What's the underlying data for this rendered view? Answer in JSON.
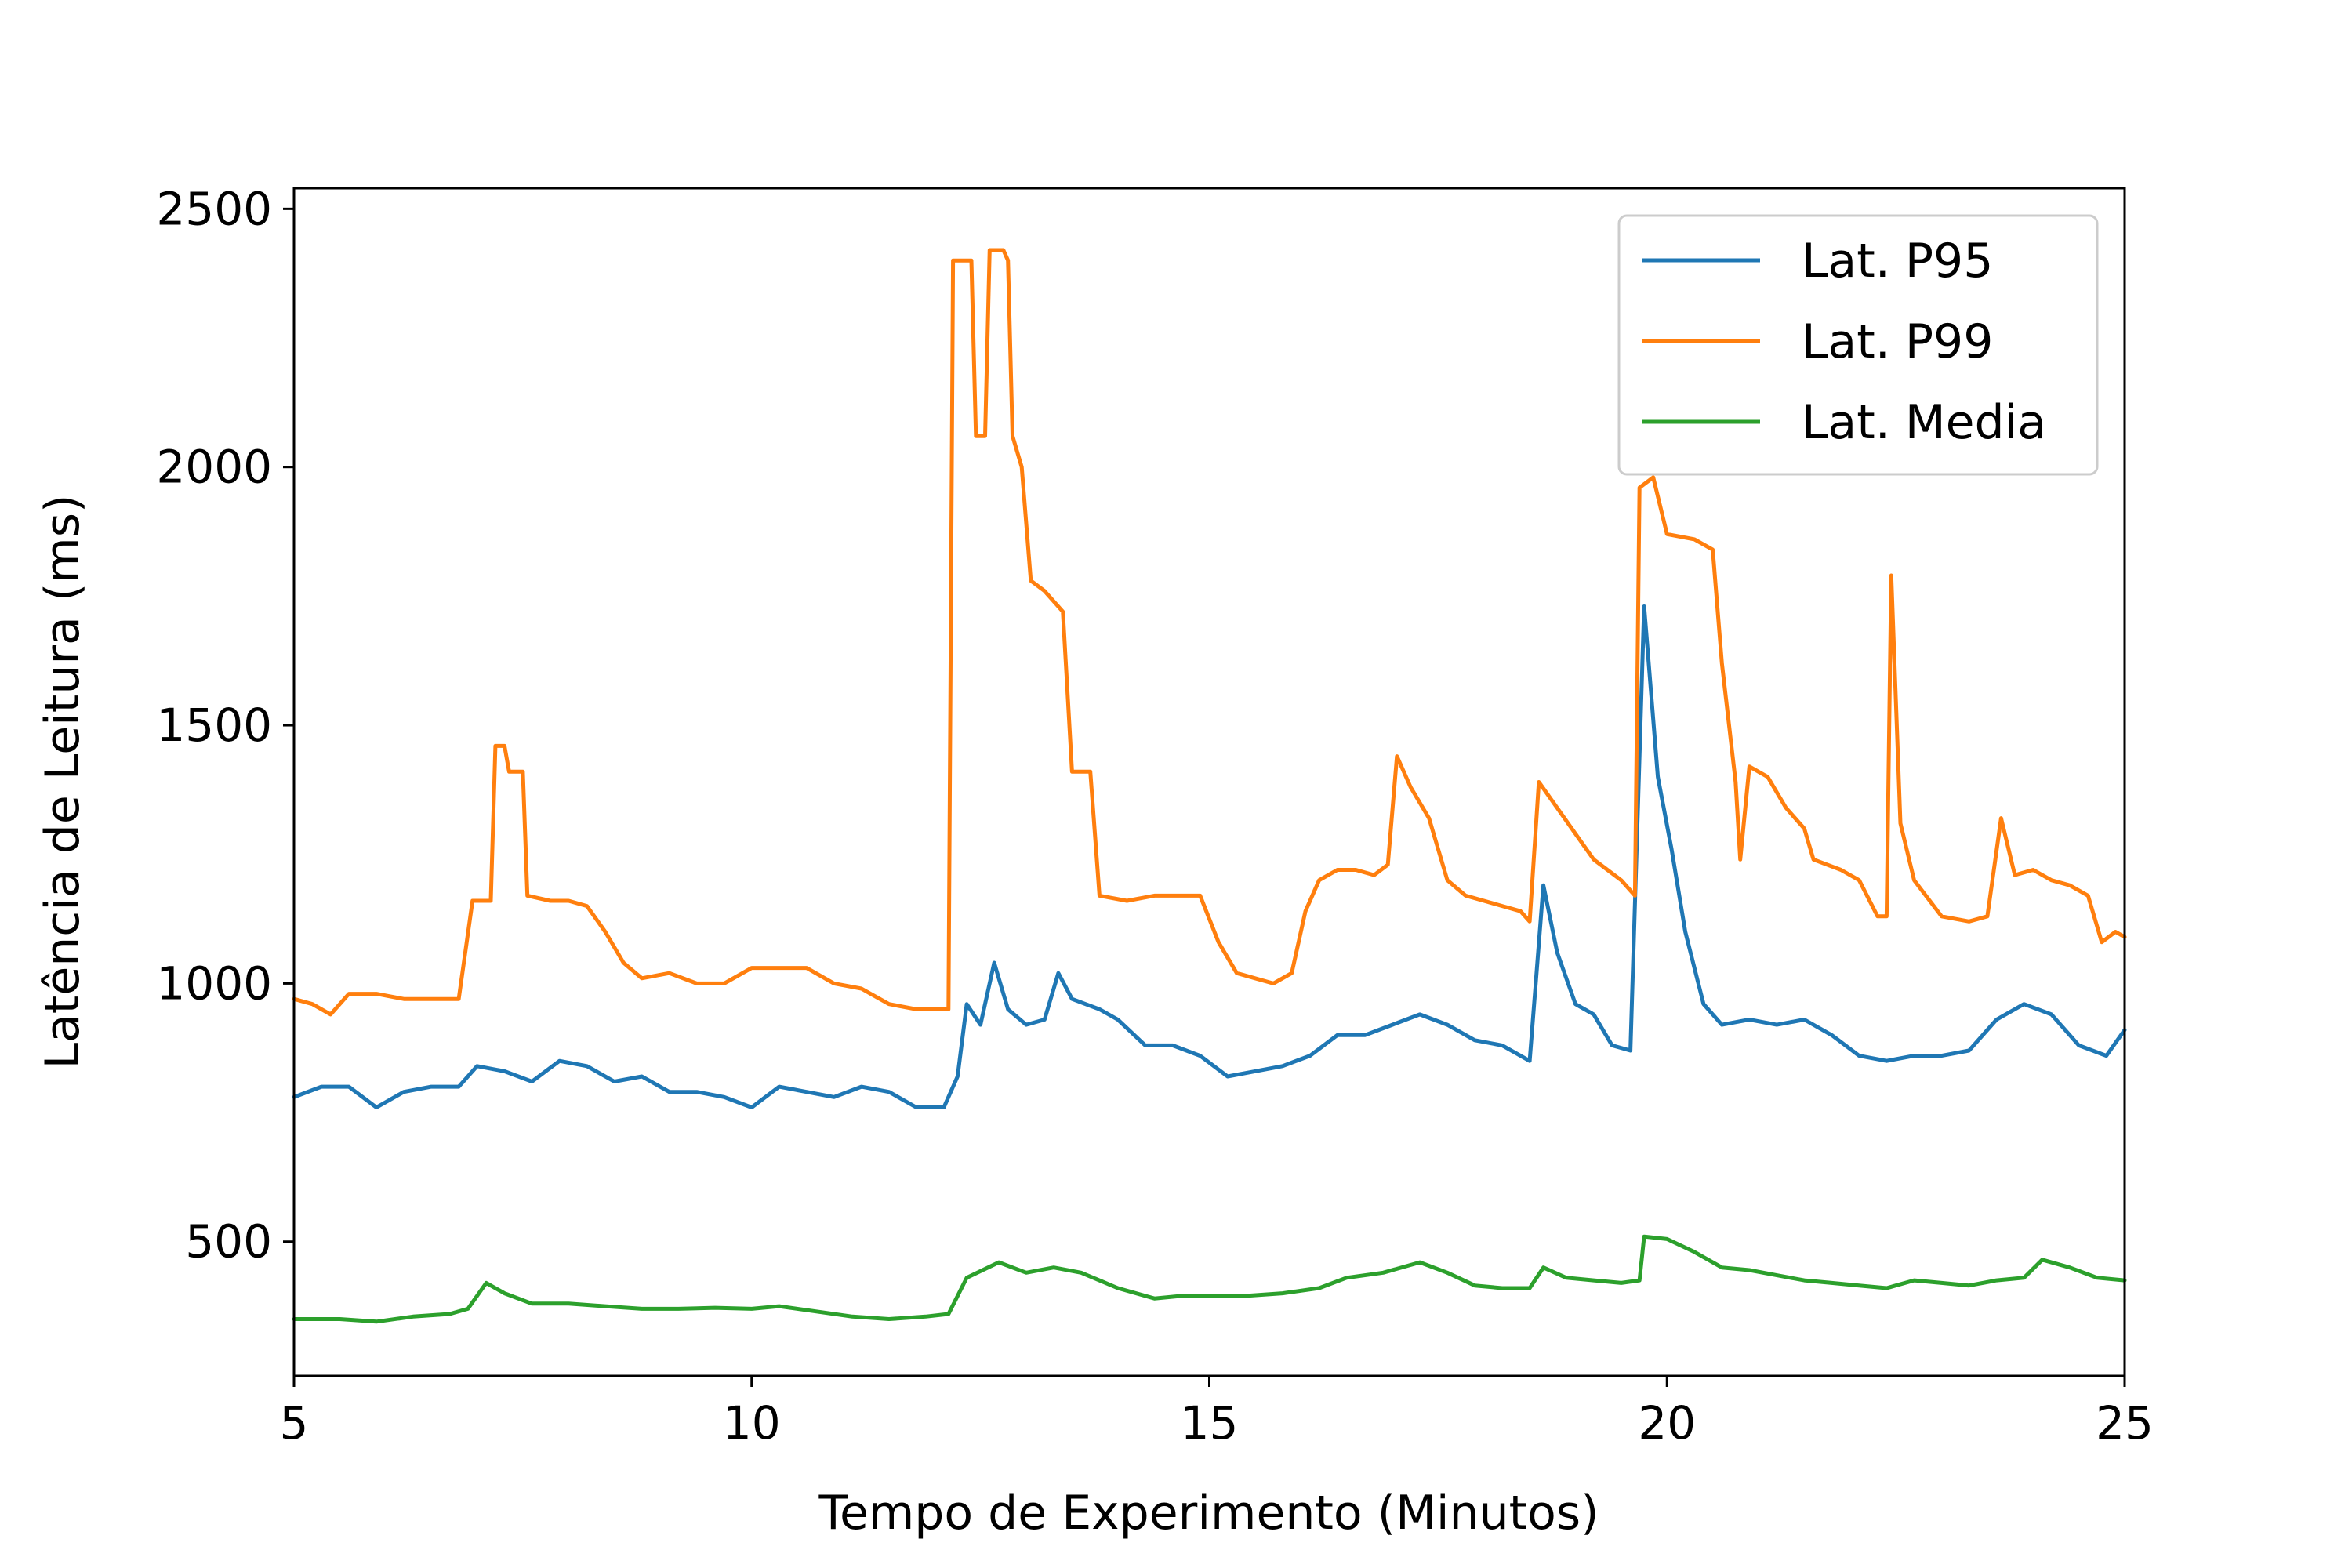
{
  "chart_data": {
    "type": "line",
    "title": "",
    "xlabel": "Tempo de Experimento (Minutos)",
    "ylabel": "Latência de Leitura (ms)",
    "xlim": [
      5,
      25
    ],
    "ylim": [
      240,
      2540
    ],
    "xticks": [
      5,
      10,
      15,
      20,
      25
    ],
    "yticks": [
      500,
      1000,
      1500,
      2000,
      2500
    ],
    "grid": false,
    "legend_position": "top-right",
    "series": [
      {
        "name": "Lat. P95",
        "color": "#1f77b4",
        "points": [
          [
            5.0,
            780
          ],
          [
            5.3,
            800
          ],
          [
            5.6,
            800
          ],
          [
            5.9,
            760
          ],
          [
            6.2,
            790
          ],
          [
            6.5,
            800
          ],
          [
            6.8,
            800
          ],
          [
            7.0,
            840
          ],
          [
            7.3,
            830
          ],
          [
            7.6,
            810
          ],
          [
            7.9,
            850
          ],
          [
            8.2,
            840
          ],
          [
            8.5,
            810
          ],
          [
            8.8,
            820
          ],
          [
            9.1,
            790
          ],
          [
            9.4,
            790
          ],
          [
            9.7,
            780
          ],
          [
            10.0,
            760
          ],
          [
            10.3,
            800
          ],
          [
            10.6,
            790
          ],
          [
            10.9,
            780
          ],
          [
            11.2,
            800
          ],
          [
            11.5,
            790
          ],
          [
            11.8,
            760
          ],
          [
            12.1,
            760
          ],
          [
            12.25,
            820
          ],
          [
            12.35,
            960
          ],
          [
            12.5,
            920
          ],
          [
            12.65,
            1040
          ],
          [
            12.8,
            950
          ],
          [
            13.0,
            920
          ],
          [
            13.2,
            930
          ],
          [
            13.35,
            1020
          ],
          [
            13.5,
            970
          ],
          [
            13.8,
            950
          ],
          [
            14.0,
            930
          ],
          [
            14.3,
            880
          ],
          [
            14.6,
            880
          ],
          [
            14.9,
            860
          ],
          [
            15.2,
            820
          ],
          [
            15.5,
            830
          ],
          [
            15.8,
            840
          ],
          [
            16.1,
            860
          ],
          [
            16.4,
            900
          ],
          [
            16.7,
            900
          ],
          [
            17.0,
            920
          ],
          [
            17.3,
            940
          ],
          [
            17.6,
            920
          ],
          [
            17.9,
            890
          ],
          [
            18.2,
            880
          ],
          [
            18.5,
            850
          ],
          [
            18.65,
            1190
          ],
          [
            18.8,
            1060
          ],
          [
            19.0,
            960
          ],
          [
            19.2,
            940
          ],
          [
            19.4,
            880
          ],
          [
            19.6,
            870
          ],
          [
            19.75,
            1730
          ],
          [
            19.9,
            1400
          ],
          [
            20.05,
            1260
          ],
          [
            20.2,
            1100
          ],
          [
            20.4,
            960
          ],
          [
            20.6,
            920
          ],
          [
            20.9,
            930
          ],
          [
            21.2,
            920
          ],
          [
            21.5,
            930
          ],
          [
            21.8,
            900
          ],
          [
            22.1,
            860
          ],
          [
            22.4,
            850
          ],
          [
            22.7,
            860
          ],
          [
            23.0,
            860
          ],
          [
            23.3,
            870
          ],
          [
            23.6,
            930
          ],
          [
            23.9,
            960
          ],
          [
            24.2,
            940
          ],
          [
            24.5,
            880
          ],
          [
            24.8,
            860
          ],
          [
            25.0,
            910
          ]
        ]
      },
      {
        "name": "Lat. P99",
        "color": "#ff7f0e",
        "points": [
          [
            5.0,
            970
          ],
          [
            5.2,
            960
          ],
          [
            5.4,
            940
          ],
          [
            5.6,
            980
          ],
          [
            5.9,
            980
          ],
          [
            6.2,
            970
          ],
          [
            6.5,
            970
          ],
          [
            6.8,
            970
          ],
          [
            6.95,
            1160
          ],
          [
            7.15,
            1160
          ],
          [
            7.2,
            1460
          ],
          [
            7.3,
            1460
          ],
          [
            7.35,
            1410
          ],
          [
            7.5,
            1410
          ],
          [
            7.55,
            1170
          ],
          [
            7.8,
            1160
          ],
          [
            8.0,
            1160
          ],
          [
            8.2,
            1150
          ],
          [
            8.4,
            1100
          ],
          [
            8.6,
            1040
          ],
          [
            8.8,
            1010
          ],
          [
            9.1,
            1020
          ],
          [
            9.4,
            1000
          ],
          [
            9.7,
            1000
          ],
          [
            10.0,
            1030
          ],
          [
            10.3,
            1030
          ],
          [
            10.6,
            1030
          ],
          [
            10.9,
            1000
          ],
          [
            11.2,
            990
          ],
          [
            11.5,
            960
          ],
          [
            11.8,
            950
          ],
          [
            12.0,
            950
          ],
          [
            12.15,
            950
          ],
          [
            12.2,
            2400
          ],
          [
            12.4,
            2400
          ],
          [
            12.45,
            2060
          ],
          [
            12.55,
            2060
          ],
          [
            12.6,
            2420
          ],
          [
            12.75,
            2420
          ],
          [
            12.8,
            2400
          ],
          [
            12.85,
            2060
          ],
          [
            12.95,
            2000
          ],
          [
            13.05,
            1780
          ],
          [
            13.2,
            1760
          ],
          [
            13.4,
            1720
          ],
          [
            13.5,
            1410
          ],
          [
            13.7,
            1410
          ],
          [
            13.8,
            1170
          ],
          [
            14.1,
            1160
          ],
          [
            14.4,
            1170
          ],
          [
            14.7,
            1170
          ],
          [
            14.9,
            1170
          ],
          [
            15.1,
            1080
          ],
          [
            15.3,
            1020
          ],
          [
            15.5,
            1010
          ],
          [
            15.7,
            1000
          ],
          [
            15.9,
            1020
          ],
          [
            16.05,
            1140
          ],
          [
            16.2,
            1200
          ],
          [
            16.4,
            1220
          ],
          [
            16.6,
            1220
          ],
          [
            16.8,
            1210
          ],
          [
            16.95,
            1230
          ],
          [
            17.05,
            1440
          ],
          [
            17.2,
            1380
          ],
          [
            17.4,
            1320
          ],
          [
            17.6,
            1200
          ],
          [
            17.8,
            1170
          ],
          [
            18.0,
            1160
          ],
          [
            18.2,
            1150
          ],
          [
            18.4,
            1140
          ],
          [
            18.5,
            1120
          ],
          [
            18.6,
            1390
          ],
          [
            18.8,
            1340
          ],
          [
            19.0,
            1290
          ],
          [
            19.2,
            1240
          ],
          [
            19.5,
            1200
          ],
          [
            19.65,
            1170
          ],
          [
            19.7,
            1960
          ],
          [
            19.85,
            1980
          ],
          [
            20.0,
            1870
          ],
          [
            20.3,
            1860
          ],
          [
            20.5,
            1840
          ],
          [
            20.6,
            1620
          ],
          [
            20.75,
            1390
          ],
          [
            20.8,
            1240
          ],
          [
            20.9,
            1420
          ],
          [
            21.1,
            1400
          ],
          [
            21.3,
            1340
          ],
          [
            21.5,
            1300
          ],
          [
            21.6,
            1240
          ],
          [
            21.9,
            1220
          ],
          [
            22.1,
            1200
          ],
          [
            22.3,
            1130
          ],
          [
            22.4,
            1130
          ],
          [
            22.45,
            1790
          ],
          [
            22.55,
            1310
          ],
          [
            22.7,
            1200
          ],
          [
            23.0,
            1130
          ],
          [
            23.3,
            1120
          ],
          [
            23.5,
            1130
          ],
          [
            23.65,
            1320
          ],
          [
            23.8,
            1210
          ],
          [
            24.0,
            1220
          ],
          [
            24.2,
            1200
          ],
          [
            24.4,
            1190
          ],
          [
            24.6,
            1170
          ],
          [
            24.75,
            1080
          ],
          [
            24.9,
            1100
          ],
          [
            25.0,
            1090
          ]
        ]
      },
      {
        "name": "Lat. Media",
        "color": "#2ca02c",
        "points": [
          [
            5.0,
            350
          ],
          [
            5.5,
            350
          ],
          [
            5.9,
            345
          ],
          [
            6.3,
            355
          ],
          [
            6.7,
            360
          ],
          [
            6.9,
            370
          ],
          [
            7.1,
            420
          ],
          [
            7.3,
            400
          ],
          [
            7.6,
            380
          ],
          [
            8.0,
            380
          ],
          [
            8.4,
            375
          ],
          [
            8.8,
            370
          ],
          [
            9.2,
            370
          ],
          [
            9.6,
            372
          ],
          [
            10.0,
            370
          ],
          [
            10.3,
            375
          ],
          [
            10.7,
            365
          ],
          [
            11.1,
            355
          ],
          [
            11.5,
            350
          ],
          [
            11.9,
            355
          ],
          [
            12.15,
            360
          ],
          [
            12.35,
            430
          ],
          [
            12.7,
            460
          ],
          [
            13.0,
            440
          ],
          [
            13.3,
            450
          ],
          [
            13.6,
            440
          ],
          [
            14.0,
            410
          ],
          [
            14.4,
            390
          ],
          [
            14.7,
            395
          ],
          [
            15.0,
            395
          ],
          [
            15.4,
            395
          ],
          [
            15.8,
            400
          ],
          [
            16.2,
            410
          ],
          [
            16.5,
            430
          ],
          [
            16.9,
            440
          ],
          [
            17.3,
            460
          ],
          [
            17.6,
            440
          ],
          [
            17.9,
            415
          ],
          [
            18.2,
            410
          ],
          [
            18.5,
            410
          ],
          [
            18.65,
            450
          ],
          [
            18.9,
            430
          ],
          [
            19.2,
            425
          ],
          [
            19.5,
            420
          ],
          [
            19.7,
            425
          ],
          [
            19.75,
            510
          ],
          [
            20.0,
            505
          ],
          [
            20.3,
            480
          ],
          [
            20.6,
            450
          ],
          [
            20.9,
            445
          ],
          [
            21.2,
            435
          ],
          [
            21.5,
            425
          ],
          [
            21.8,
            420
          ],
          [
            22.1,
            415
          ],
          [
            22.4,
            410
          ],
          [
            22.7,
            425
          ],
          [
            23.0,
            420
          ],
          [
            23.3,
            415
          ],
          [
            23.6,
            425
          ],
          [
            23.9,
            430
          ],
          [
            24.1,
            465
          ],
          [
            24.4,
            450
          ],
          [
            24.7,
            430
          ],
          [
            25.0,
            425
          ]
        ]
      }
    ]
  }
}
